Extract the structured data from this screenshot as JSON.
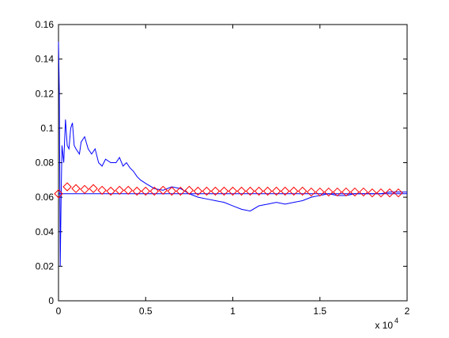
{
  "chart_data": {
    "type": "line",
    "xlim": [
      0,
      20000
    ],
    "xticks": [
      {
        "value": 0,
        "label": "0"
      },
      {
        "value": 5000,
        "label": "0.5"
      },
      {
        "value": 10000,
        "label": "1"
      },
      {
        "value": 15000,
        "label": "1.5"
      },
      {
        "value": 20000,
        "label": "2"
      }
    ],
    "x_exponent_base": "x 10",
    "x_exponent": "4",
    "ylim": [
      0,
      0.16
    ],
    "yticks": [
      0,
      0.02,
      0.04,
      0.06,
      0.08,
      0.1,
      0.12,
      0.14,
      0.16
    ],
    "grid": false,
    "series": [
      {
        "color": "#0000ff",
        "style": "line",
        "x": [
          0,
          50,
          100,
          150,
          200,
          300,
          400,
          500,
          600,
          700,
          800,
          900,
          1000,
          1200,
          1300,
          1500,
          1700,
          1900,
          2100,
          2300,
          2500,
          2700,
          3000,
          3300,
          3500,
          3700,
          3900,
          4100,
          4300,
          4500,
          4700,
          5000,
          5500,
          6000,
          6500,
          7000,
          7500,
          8000,
          8500,
          9000,
          9500,
          10000,
          10500,
          11000,
          11500,
          12000,
          12500,
          13000,
          13500,
          14000,
          14500,
          15000,
          15500,
          16000,
          16500,
          17000,
          17500,
          18000,
          18500,
          19000,
          19500,
          20000
        ],
        "values": [
          0.15,
          0.12,
          0.02,
          0.06,
          0.09,
          0.08,
          0.105,
          0.09,
          0.088,
          0.1,
          0.103,
          0.09,
          0.088,
          0.085,
          0.092,
          0.095,
          0.088,
          0.085,
          0.088,
          0.08,
          0.078,
          0.082,
          0.08,
          0.08,
          0.083,
          0.078,
          0.08,
          0.077,
          0.075,
          0.072,
          0.07,
          0.068,
          0.065,
          0.064,
          0.066,
          0.065,
          0.062,
          0.06,
          0.059,
          0.058,
          0.057,
          0.055,
          0.053,
          0.052,
          0.055,
          0.056,
          0.057,
          0.056,
          0.057,
          0.058,
          0.06,
          0.061,
          0.062,
          0.061,
          0.061,
          0.062,
          0.062,
          0.062,
          0.062,
          0.063,
          0.063,
          0.063
        ]
      },
      {
        "color": "#0000ff",
        "style": "line",
        "x": [
          0,
          20000
        ],
        "values": [
          0.062,
          0.062
        ]
      },
      {
        "color": "#ff0000",
        "style": "diamond",
        "x": [
          0,
          500,
          1000,
          1500,
          2000,
          2500,
          3000,
          3500,
          4000,
          4500,
          5000,
          5500,
          6000,
          6500,
          7000,
          7500,
          8000,
          8500,
          9000,
          9500,
          10000,
          10500,
          11000,
          11500,
          12000,
          12500,
          13000,
          13500,
          14000,
          14500,
          15000,
          15500,
          16000,
          16500,
          17000,
          17500,
          18000,
          18500,
          19000,
          19500
        ],
        "values": [
          0.062,
          0.066,
          0.065,
          0.0645,
          0.065,
          0.064,
          0.0635,
          0.064,
          0.064,
          0.0635,
          0.0635,
          0.0635,
          0.064,
          0.0635,
          0.0635,
          0.064,
          0.0635,
          0.0635,
          0.0635,
          0.0635,
          0.0635,
          0.0635,
          0.0635,
          0.0635,
          0.0635,
          0.0635,
          0.0635,
          0.0635,
          0.0635,
          0.063,
          0.063,
          0.063,
          0.063,
          0.063,
          0.063,
          0.063,
          0.0625,
          0.0625,
          0.0625,
          0.0625
        ]
      }
    ]
  }
}
